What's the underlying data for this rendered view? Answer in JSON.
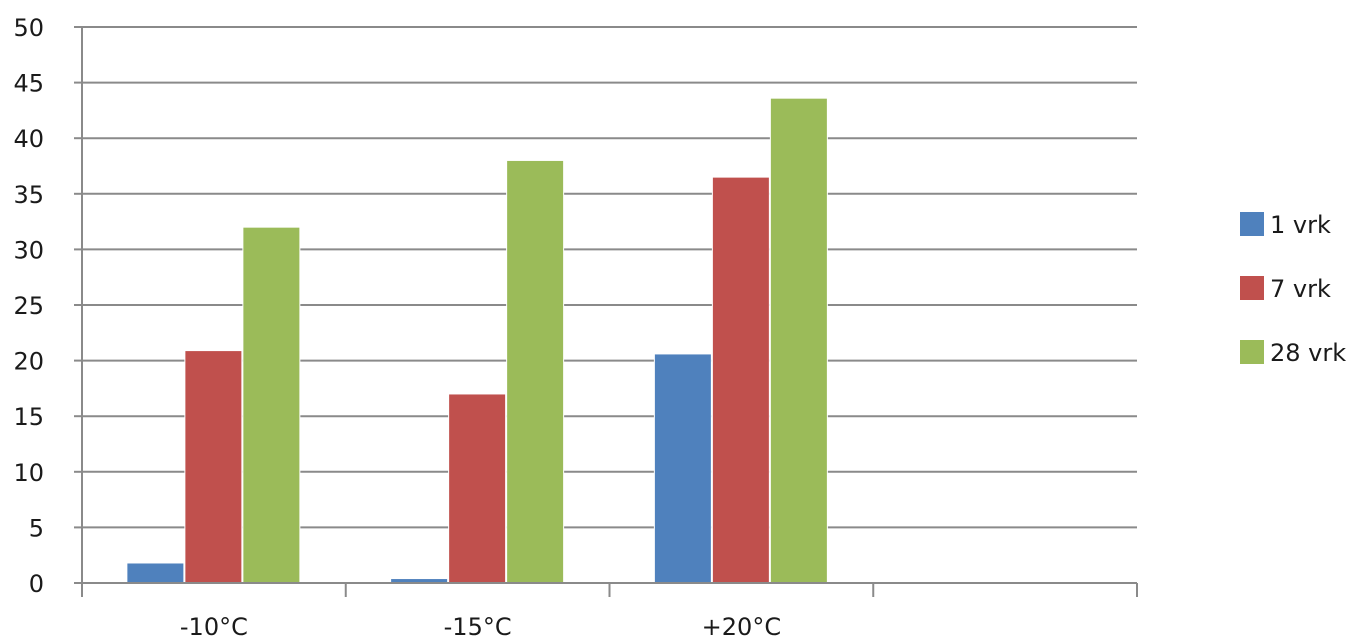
{
  "chart_data": {
    "type": "bar",
    "categories": [
      "-10°C",
      "-15°C",
      "+20°C",
      ""
    ],
    "series": [
      {
        "name": "1 vrk",
        "values": [
          1.8,
          0.4,
          20.6,
          null
        ],
        "color": "#4F81BD"
      },
      {
        "name": "7 vrk",
        "values": [
          20.9,
          17.0,
          36.5,
          null
        ],
        "color": "#C0504D"
      },
      {
        "name": "28 vrk",
        "values": [
          32.0,
          38.0,
          43.6,
          null
        ],
        "color": "#9BBB59"
      }
    ],
    "ylim": [
      0,
      50
    ],
    "yticks": [
      0,
      5,
      10,
      15,
      20,
      25,
      30,
      35,
      40,
      45,
      50
    ],
    "grid": true,
    "legend": "right",
    "title": "",
    "xlabel": "",
    "ylabel": ""
  }
}
